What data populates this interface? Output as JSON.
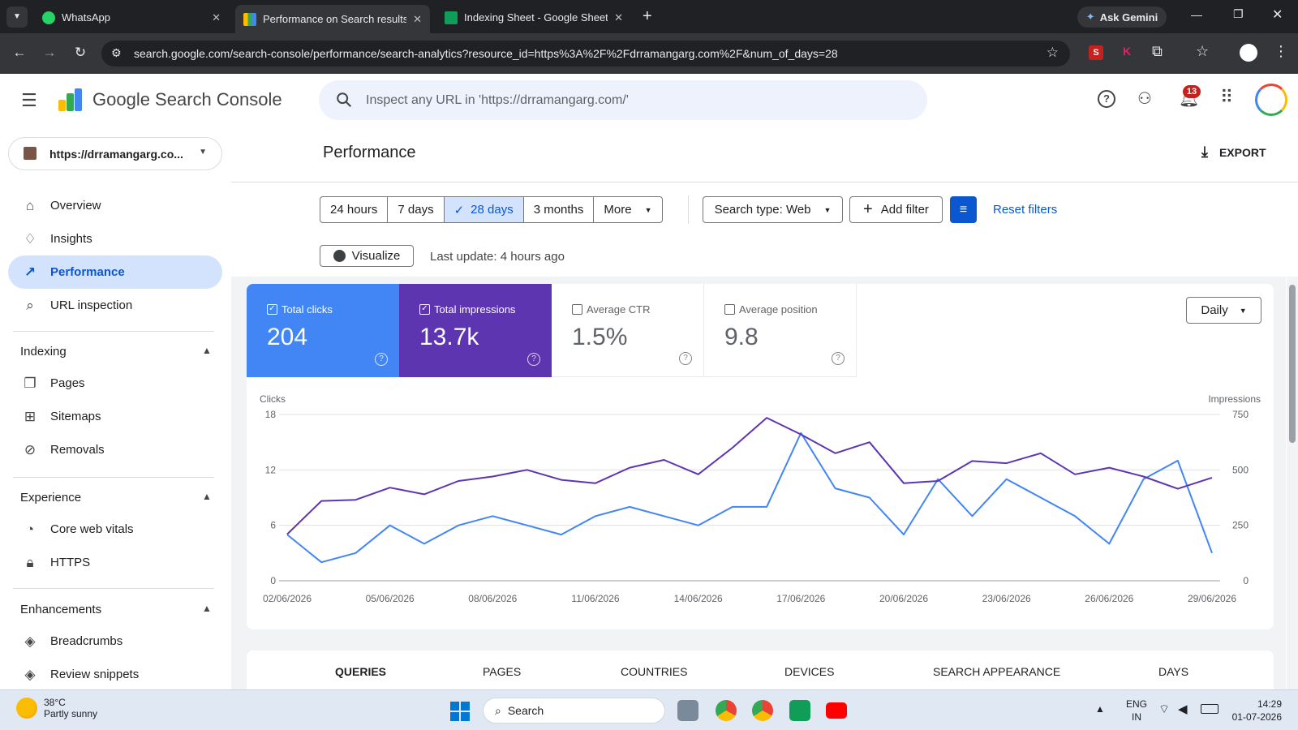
{
  "browser": {
    "tabs": [
      {
        "title": "WhatsApp",
        "active": false
      },
      {
        "title": "Performance on Search results",
        "active": true
      },
      {
        "title": "Indexing Sheet - Google Sheets",
        "active": false
      }
    ],
    "ask_gemini": "Ask Gemini",
    "url": "search.google.com/search-console/performance/search-analytics?resource_id=https%3A%2F%2Fdrramangarg.com%2F&num_of_days=28"
  },
  "header": {
    "logo_text": "Google Search Console",
    "search_placeholder": "Inspect any URL in 'https://drramangarg.com/'",
    "notif_count": "13"
  },
  "sidebar": {
    "property": "https://drramangarg.co...",
    "top_items": [
      "Overview",
      "Insights",
      "Performance",
      "URL inspection"
    ],
    "sections": [
      {
        "title": "Indexing",
        "items": [
          "Pages",
          "Sitemaps",
          "Removals"
        ]
      },
      {
        "title": "Experience",
        "items": [
          "Core web vitals",
          "HTTPS"
        ]
      },
      {
        "title": "Enhancements",
        "items": [
          "Breadcrumbs",
          "Review snippets"
        ]
      }
    ]
  },
  "main": {
    "title": "Performance",
    "export": "EXPORT",
    "ranges": [
      "24 hours",
      "7 days",
      "28 days",
      "3 months",
      "More"
    ],
    "selected_range": "28 days",
    "search_type": "Search type: Web",
    "add_filter": "Add filter",
    "reset_filters": "Reset filters",
    "visualize": "Visualize",
    "last_update": "Last update: 4 hours ago",
    "granularity": "Daily",
    "metrics": [
      {
        "label": "Total clicks",
        "value": "204",
        "checked": true,
        "color": "#4285f4"
      },
      {
        "label": "Total impressions",
        "value": "13.7k",
        "checked": true,
        "color": "#5e35b1"
      },
      {
        "label": "Average CTR",
        "value": "1.5%",
        "checked": false,
        "color": "#ffffff"
      },
      {
        "label": "Average position",
        "value": "9.8",
        "checked": false,
        "color": "#ffffff"
      }
    ],
    "bottom_tabs": [
      "QUERIES",
      "PAGES",
      "COUNTRIES",
      "DEVICES",
      "SEARCH APPEARANCE",
      "DAYS"
    ]
  },
  "chart_data": {
    "type": "line",
    "ylabel_left": "Clicks",
    "ylabel_right": "Impressions",
    "y_left_ticks": [
      "18",
      "12",
      "6",
      "0"
    ],
    "y_right_ticks": [
      "750",
      "500",
      "250",
      "0"
    ],
    "ylim_left": [
      0,
      18
    ],
    "ylim_right": [
      0,
      750
    ],
    "x_tick_labels": [
      "02/06/2026",
      "05/06/2026",
      "08/06/2026",
      "11/06/2026",
      "14/06/2026",
      "17/06/2026",
      "20/06/2026",
      "23/06/2026",
      "26/06/2026",
      "29/06/2026"
    ],
    "series": [
      {
        "name": "Clicks",
        "axis": "left",
        "color": "#4285f4",
        "values": [
          5,
          2,
          3,
          6,
          4,
          6,
          7,
          6,
          5,
          7,
          8,
          7,
          6,
          8,
          8,
          16,
          10,
          9,
          5,
          11,
          7,
          11,
          9,
          7,
          4,
          11,
          13,
          3
        ]
      },
      {
        "name": "Impressions",
        "axis": "right",
        "color": "#5e35b1",
        "values": [
          210,
          360,
          365,
          420,
          390,
          450,
          470,
          500,
          455,
          440,
          510,
          545,
          480,
          600,
          735,
          660,
          575,
          625,
          440,
          450,
          540,
          530,
          575,
          480,
          510,
          470,
          415,
          465
        ]
      }
    ]
  },
  "taskbar": {
    "weather_temp": "38°C",
    "weather_desc": "Partly sunny",
    "search": "Search",
    "lang1": "ENG",
    "lang2": "IN",
    "time": "14:29",
    "date": "01-07-2026"
  }
}
